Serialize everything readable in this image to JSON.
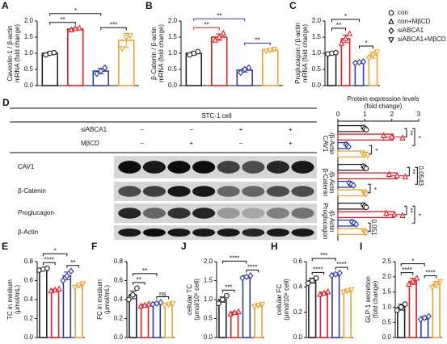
{
  "legend": [
    {
      "name": "con",
      "color": "#222222",
      "marker": "circle"
    },
    {
      "name": "con+MβCD",
      "color": "#e41a1c",
      "marker": "triangle-up"
    },
    {
      "name": "siABCA1",
      "color": "#2a3aa8",
      "marker": "diamond"
    },
    {
      "name": "siABCA1+MβCD",
      "color": "#f0a030",
      "marker": "triangle-down"
    }
  ],
  "blot": {
    "panel": "D",
    "title": "STC-1 cell",
    "conditions": [
      {
        "label": "siABCA1",
        "marks": [
          "−",
          "−",
          "+",
          "+"
        ]
      },
      {
        "label": "MβCD",
        "marks": [
          "−",
          "+",
          "−",
          "+"
        ]
      }
    ],
    "proteins": [
      "CAV1",
      "β-Catenin",
      "Proglucagon",
      "β-Actin"
    ]
  },
  "chart_data": [
    {
      "type": "bar",
      "panel": "A",
      "ylabel": [
        "Caveolin-1 / β-actin",
        "mRNA (fold change)"
      ],
      "ylim": [
        0,
        2
      ],
      "yticks": [
        {
          "value": 0,
          "label": "0.0"
        },
        0.5,
        {
          "value": 1,
          "label": "1.0"
        },
        1.5,
        {
          "value": 2,
          "label": "2.0"
        }
      ],
      "values": [
        1.0,
        1.75,
        0.45,
        1.4
      ],
      "errors": [
        0.04,
        0.03,
        0.08,
        0.22
      ],
      "points": [
        [
          0.95,
          1.0,
          1.02
        ],
        [
          1.72,
          1.76,
          1.78
        ],
        [
          0.37,
          0.45,
          0.55
        ],
        [
          1.15,
          1.5,
          1.55
        ]
      ],
      "annotations": [
        {
          "from": 0,
          "to": 1,
          "label": "**"
        },
        {
          "from": 2,
          "to": 3,
          "label": "***"
        },
        {
          "from": 0,
          "to": 2,
          "label": "*"
        }
      ]
    },
    {
      "type": "bar",
      "panel": "B",
      "ylabel": [
        "β-Catenin / β-actin",
        "mRNA (fold change)"
      ],
      "ylim": [
        0,
        2
      ],
      "yticks": [
        {
          "value": 0,
          "label": "0.0"
        },
        0.5,
        {
          "value": 1,
          "label": "1.0"
        },
        1.5,
        {
          "value": 2,
          "label": "2.0"
        }
      ],
      "values": [
        1.0,
        1.5,
        0.48,
        1.1
      ],
      "errors": [
        0.05,
        0.1,
        0.06,
        0.04
      ],
      "points": [
        [
          0.95,
          1.0,
          1.05
        ],
        [
          1.4,
          1.5,
          1.62
        ],
        [
          0.4,
          0.5,
          0.55
        ],
        [
          1.07,
          1.1,
          1.13
        ]
      ],
      "annotations": [
        {
          "from": 0,
          "to": 1,
          "label": "**",
          "color": "#e41a1c"
        },
        {
          "from": 2,
          "to": 3,
          "label": "**",
          "color": "#2a3aa8"
        },
        {
          "from": 0,
          "to": 2,
          "label": "**",
          "color": "#2a3aa8"
        }
      ]
    },
    {
      "type": "bar",
      "panel": "C",
      "ylabel": [
        "Proglucagon / β-actin",
        "mRNA (fold change)"
      ],
      "ylim": [
        0,
        2
      ],
      "yticks": [
        {
          "value": 0,
          "label": "0.0"
        },
        0.5,
        {
          "value": 1,
          "label": "1.0"
        },
        1.5,
        {
          "value": 2,
          "label": "2.0"
        }
      ],
      "values": [
        1.0,
        1.45,
        0.72,
        0.95
      ],
      "errors": [
        0.02,
        0.12,
        0.03,
        0.1
      ],
      "points": [
        [
          0.98,
          1.0,
          1.02
        ],
        [
          1.3,
          1.45,
          1.6
        ],
        [
          0.7,
          0.72,
          0.74
        ],
        [
          0.85,
          0.95,
          1.05
        ]
      ],
      "annotations": [
        {
          "from": 0,
          "to": 1,
          "label": "**"
        },
        {
          "from": 2,
          "to": 3,
          "label": "*"
        },
        {
          "from": 0,
          "to": 2,
          "label": "*"
        }
      ]
    },
    {
      "type": "hbar",
      "title": [
        "Protein expression levels",
        "(fold change)"
      ],
      "xlim": [
        0,
        3
      ],
      "xticks": [
        0,
        1,
        2,
        3
      ],
      "groups": [
        {
          "label": [
            "CAV1",
            "/β-Actin"
          ],
          "values": [
            1.0,
            2.05,
            0.35,
            1.0
          ],
          "errors": [
            0.05,
            0.35,
            0.05,
            0.1
          ],
          "points": [
            [
              0.95,
              1.0,
              1.05
            ],
            [
              1.7,
              2.0,
              2.4
            ],
            [
              0.3,
              0.35,
              0.4
            ],
            [
              0.9,
              1.0,
              1.1
            ]
          ],
          "annotations": [
            {
              "from": 0,
              "to": 1,
              "label": "**"
            },
            {
              "from": 2,
              "to": 3,
              "label": "*"
            },
            {
              "from": 0,
              "to": 2,
              "label": "*"
            }
          ]
        },
        {
          "label": [
            "β-Catenin",
            "/β-Actin"
          ],
          "values": [
            1.0,
            2.2,
            0.5,
            1.0
          ],
          "errors": [
            0.05,
            0.3,
            0.08,
            0.05
          ],
          "points": [
            [
              0.95,
              1.0,
              1.05
            ],
            [
              1.9,
              2.2,
              2.5
            ],
            [
              0.42,
              0.5,
              0.58
            ],
            [
              0.95,
              1.0,
              1.05
            ]
          ],
          "annotations": [
            {
              "from": 0,
              "to": 1,
              "label": "**"
            },
            {
              "from": 2,
              "to": 3,
              "label": "*"
            },
            {
              "from": 0,
              "to": 2,
              "label": "0.0543"
            }
          ]
        },
        {
          "label": [
            "Proglucagon",
            "/β-Actin"
          ],
          "values": [
            1.0,
            2.1,
            0.6,
            1.0
          ],
          "errors": [
            0.05,
            0.3,
            0.08,
            0.05
          ],
          "points": [
            [
              0.95,
              1.0,
              1.05
            ],
            [
              1.8,
              2.1,
              2.4
            ],
            [
              0.52,
              0.6,
              0.68
            ],
            [
              0.95,
              1.0,
              1.05
            ]
          ],
          "annotations": [
            {
              "from": 0,
              "to": 1,
              "label": "**"
            },
            {
              "from": 2,
              "to": 3,
              "label": "0.051"
            },
            {
              "from": 0,
              "to": 2,
              "label": "*"
            }
          ]
        }
      ]
    },
    {
      "type": "bar",
      "panel": "E",
      "ylabel": [
        "TC in medium",
        "(μmol/mL)"
      ],
      "ylim": [
        0,
        0.8
      ],
      "yticks": [
        {
          "value": 0,
          "label": "0.0"
        },
        0.2,
        0.4,
        0.6,
        0.8
      ],
      "values": [
        0.72,
        0.5,
        0.65,
        0.55
      ],
      "errors": [
        0.01,
        0.01,
        0.04,
        0.02
      ],
      "points": [
        [
          0.71,
          0.72,
          0.73
        ],
        [
          0.49,
          0.5,
          0.51
        ],
        [
          0.6,
          0.65,
          0.7
        ],
        [
          0.53,
          0.55,
          0.57
        ]
      ],
      "annotations": [
        {
          "from": 0,
          "to": 1,
          "label": "****"
        },
        {
          "from": 2,
          "to": 3,
          "label": "**"
        },
        {
          "from": 0,
          "to": 2,
          "label": "*"
        }
      ]
    },
    {
      "type": "bar",
      "panel": "F",
      "ylabel": [
        "FC in medium",
        "(μmol/mL)"
      ],
      "ylim": [
        0,
        0.8
      ],
      "yticks": [
        {
          "value": 0,
          "label": "0.0"
        },
        0.2,
        0.4,
        0.6,
        0.8
      ],
      "values": [
        0.45,
        0.34,
        0.36,
        0.35
      ],
      "errors": [
        0.04,
        0.01,
        0.01,
        0.01
      ],
      "points": [
        [
          0.4,
          0.45,
          0.52
        ],
        [
          0.33,
          0.34,
          0.35
        ],
        [
          0.35,
          0.36,
          0.37
        ],
        [
          0.34,
          0.35,
          0.36
        ]
      ],
      "annotations": [
        {
          "from": 0,
          "to": 1,
          "label": "**"
        },
        {
          "from": 2,
          "to": 3,
          "label": "ns"
        },
        {
          "from": 0,
          "to": 2,
          "label": "**"
        }
      ]
    },
    {
      "type": "bar",
      "panel": "J",
      "ylabel": [
        "cellular TC",
        "(μmol/10⁶ cell)"
      ],
      "ylim": [
        0,
        2
      ],
      "yticks": [
        {
          "value": 0,
          "label": "0.0"
        },
        0.5,
        {
          "value": 1,
          "label": "1.0"
        },
        1.5,
        {
          "value": 2,
          "label": "2.0"
        }
      ],
      "values": [
        1.0,
        0.65,
        1.6,
        0.85
      ],
      "errors": [
        0.07,
        0.03,
        0.03,
        0.03
      ],
      "points": [
        [
          0.9,
          1.0,
          1.1
        ],
        [
          0.62,
          0.65,
          0.68
        ],
        [
          1.57,
          1.6,
          1.63
        ],
        [
          0.82,
          0.85,
          0.88
        ]
      ],
      "annotations": [
        {
          "from": 0,
          "to": 1,
          "label": "***"
        },
        {
          "from": 2,
          "to": 3,
          "label": "****"
        },
        {
          "from": 0,
          "to": 2,
          "label": "****"
        }
      ]
    },
    {
      "type": "bar",
      "panel": "H",
      "ylabel": [
        "cellular FC",
        "(μmol/10⁶ cell)"
      ],
      "ylim": [
        0,
        0.6
      ],
      "yticks": [
        {
          "value": 0,
          "label": "0.0"
        },
        0.2,
        0.4,
        0.6
      ],
      "values": [
        0.45,
        0.35,
        0.5,
        0.37
      ],
      "errors": [
        0.02,
        0.01,
        0.01,
        0.01
      ],
      "points": [
        [
          0.43,
          0.45,
          0.47
        ],
        [
          0.34,
          0.35,
          0.36
        ],
        [
          0.49,
          0.5,
          0.51
        ],
        [
          0.36,
          0.37,
          0.38
        ]
      ],
      "annotations": [
        {
          "from": 0,
          "to": 1,
          "label": "****"
        },
        {
          "from": 2,
          "to": 3,
          "label": "****"
        },
        {
          "from": 0,
          "to": 2,
          "label": "***"
        }
      ]
    },
    {
      "type": "bar",
      "panel": "I",
      "ylabel": [
        "GLP-1 secretion",
        "(fold change)"
      ],
      "ylim": [
        0,
        2.5
      ],
      "yticks": [
        {
          "value": 0,
          "label": "0.0"
        },
        0.5,
        {
          "value": 1,
          "label": "1.0"
        },
        1.5,
        {
          "value": 2,
          "label": "2.0"
        },
        2.5
      ],
      "values": [
        1.0,
        1.85,
        0.65,
        1.75
      ],
      "errors": [
        0.1,
        0.1,
        0.05,
        0.1
      ],
      "points": [
        [
          0.9,
          1.0,
          1.1
        ],
        [
          1.75,
          1.85,
          1.95
        ],
        [
          0.6,
          0.65,
          0.7
        ],
        [
          1.65,
          1.75,
          1.85
        ]
      ],
      "annotations": [
        {
          "from": 0,
          "to": 1,
          "label": "****"
        },
        {
          "from": 2,
          "to": 3,
          "label": "****"
        },
        {
          "from": 0,
          "to": 2,
          "label": "*"
        }
      ]
    }
  ]
}
